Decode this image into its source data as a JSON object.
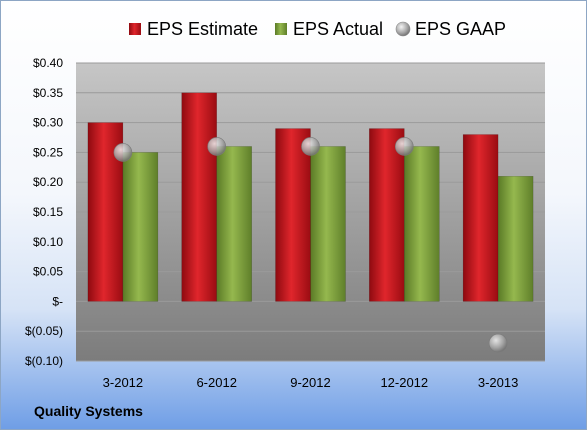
{
  "chart_data": {
    "type": "bar",
    "categories": [
      "3-2012",
      "6-2012",
      "9-2012",
      "12-2012",
      "3-2013"
    ],
    "series": [
      {
        "name": "EPS Estimate",
        "kind": "bar",
        "color": "#c8141c",
        "values": [
          0.3,
          0.35,
          0.29,
          0.29,
          0.28
        ]
      },
      {
        "name": "EPS Actual",
        "kind": "bar",
        "color": "#7ea03c",
        "values": [
          0.25,
          0.26,
          0.26,
          0.26,
          0.21
        ]
      },
      {
        "name": "EPS GAAP",
        "kind": "scatter",
        "color": "#b0b0b0",
        "values": [
          0.25,
          0.26,
          0.26,
          0.26,
          -0.07
        ]
      }
    ],
    "ylim": [
      -0.1,
      0.4
    ],
    "yticks": [
      0.4,
      0.35,
      0.3,
      0.25,
      0.2,
      0.15,
      0.1,
      0.05,
      0.0,
      -0.05,
      -0.1
    ],
    "ytick_labels": [
      "$0.40",
      "$0.35",
      "$0.30",
      "$0.25",
      "$0.20",
      "$0.15",
      "$0.10",
      "$0.05",
      "$-",
      "$(0.05)",
      "$(0.10)"
    ],
    "grid": true,
    "legend": "top"
  },
  "footer": {
    "company": "Quality Systems"
  }
}
